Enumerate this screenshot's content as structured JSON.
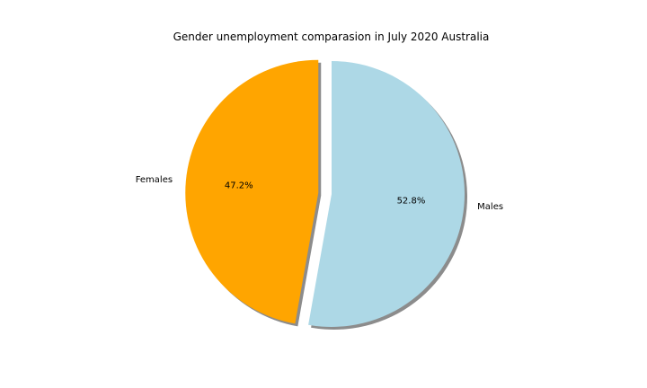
{
  "chart_data": {
    "type": "pie",
    "title": "Gender unemployment comparasion in July 2020 Australia",
    "slices": [
      {
        "label": "Females",
        "value": 47.2,
        "pct_label": "47.2%",
        "color": "#ffa500",
        "explode": 0.1
      },
      {
        "label": "Males",
        "value": 52.8,
        "pct_label": "52.8%",
        "color": "#add8e6",
        "explode": 0
      }
    ],
    "start_angle_deg": 90,
    "shadow": true,
    "legend": "none"
  }
}
